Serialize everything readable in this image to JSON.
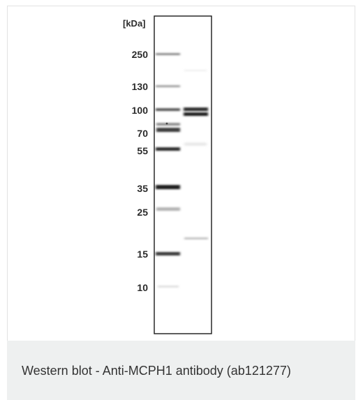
{
  "figure": {
    "unit_label": "[kDa]",
    "markers": [
      {
        "label": "250",
        "kda": 250
      },
      {
        "label": "130",
        "kda": 130
      },
      {
        "label": "100",
        "kda": 100
      },
      {
        "label": "70",
        "kda": 70
      },
      {
        "label": "55",
        "kda": 55
      },
      {
        "label": "35",
        "kda": 35
      },
      {
        "label": "25",
        "kda": 25
      },
      {
        "label": "15",
        "kda": 15
      },
      {
        "label": "10",
        "kda": 10
      }
    ],
    "caption": "Western blot - Anti-MCPH1 antibody (ab121277)"
  }
}
